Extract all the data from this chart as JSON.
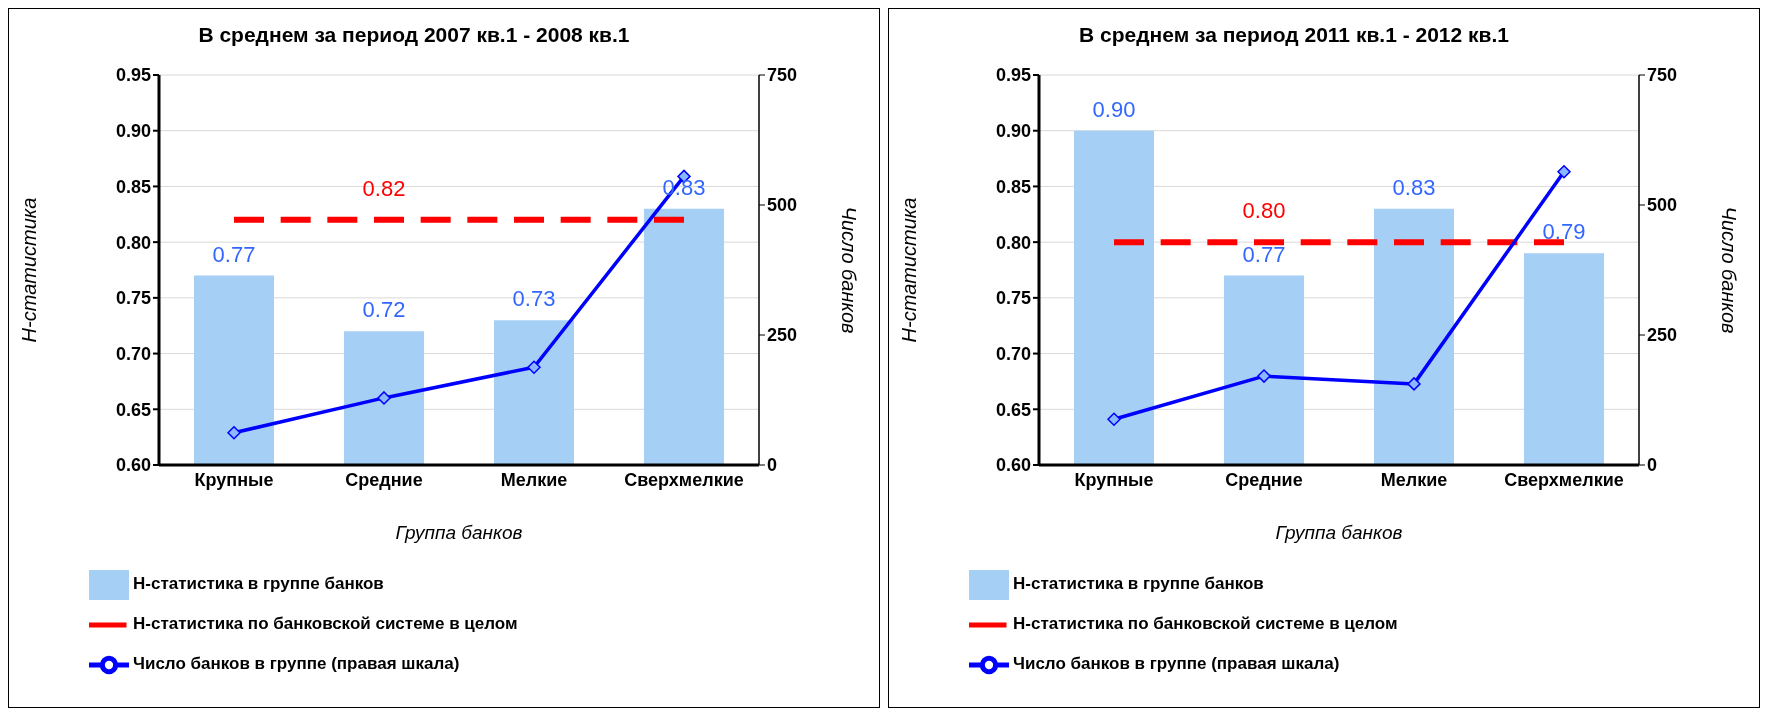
{
  "chart_data": [
    {
      "type": "bar",
      "title": "В среднем за период 2007 кв.1 - 2008 кв.1",
      "xlabel": "Группа банков",
      "ylabel": "Н-статистика",
      "y2label": "Число банков",
      "categories": [
        "Крупные",
        "Средние",
        "Мелкие",
        "Сверхмелкие"
      ],
      "series": [
        {
          "name": "Н-статистика в группе банков",
          "color": "#a6cff6",
          "values": [
            0.77,
            0.72,
            0.73,
            0.83
          ],
          "value_labels": [
            "0.77",
            "0.72",
            "0.73",
            "0.83"
          ]
        },
        {
          "name": "Н-статистика по банковской системе в целом",
          "type": "line",
          "color": "#ff0000",
          "line_style": "dashed",
          "marker": "none",
          "values": [
            0.82,
            0.82,
            0.82,
            0.82
          ],
          "value_labels": [
            null,
            "0.82",
            null,
            null
          ]
        },
        {
          "name": "Число банков в группе (правая шкала)",
          "type": "line",
          "color": "#0000ff",
          "marker": "diamond",
          "line_style": "solid",
          "axis": "y2",
          "values": [
            62,
            129,
            188,
            555
          ]
        }
      ],
      "ylim": [
        0.6,
        0.95
      ],
      "yticks": [
        {
          "value": 0.6,
          "label": "0.60"
        },
        0.65,
        {
          "value": 0.7,
          "label": "0.70"
        },
        0.75,
        {
          "value": 0.8,
          "label": "0.80"
        },
        0.85,
        {
          "value": 0.9,
          "label": "0.90"
        },
        0.95
      ],
      "y2lim": [
        0,
        750
      ],
      "y2ticks": [
        0,
        250,
        500,
        750
      ],
      "grid": "y",
      "legend": "bottom"
    },
    {
      "type": "bar",
      "title": "В среднем за период 2011 кв.1 - 2012 кв.1",
      "xlabel": "Группа банков",
      "ylabel": "Н-статистика",
      "y2label": "Число банков",
      "categories": [
        "Крупные",
        "Средние",
        "Мелкие",
        "Сверхмелкие"
      ],
      "series": [
        {
          "name": "Н-статистика в группе банков",
          "color": "#a6cff6",
          "values": [
            0.9,
            0.77,
            0.83,
            0.79
          ],
          "value_labels": [
            "0.90",
            "0.77",
            "0.83",
            "0.79"
          ]
        },
        {
          "name": "Н-статистика по банковской системе в целом",
          "type": "line",
          "color": "#ff0000",
          "line_style": "dashed",
          "marker": "none",
          "values": [
            0.8,
            0.8,
            0.8,
            0.8
          ],
          "value_labels": [
            null,
            "0.80",
            null,
            null
          ]
        },
        {
          "name": "Число банков в группе (правая шкала)",
          "type": "line",
          "color": "#0000ff",
          "marker": "diamond",
          "line_style": "solid",
          "axis": "y2",
          "values": [
            88,
            171,
            156,
            564
          ]
        }
      ],
      "ylim": [
        0.6,
        0.95
      ],
      "yticks": [
        {
          "value": 0.6,
          "label": "0.60"
        },
        0.65,
        {
          "value": 0.7,
          "label": "0.70"
        },
        0.75,
        {
          "value": 0.8,
          "label": "0.80"
        },
        0.85,
        {
          "value": 0.9,
          "label": "0.90"
        },
        0.95
      ],
      "y2lim": [
        0,
        750
      ],
      "y2ticks": [
        0,
        250,
        500,
        750
      ],
      "grid": "y",
      "legend": "bottom"
    }
  ]
}
